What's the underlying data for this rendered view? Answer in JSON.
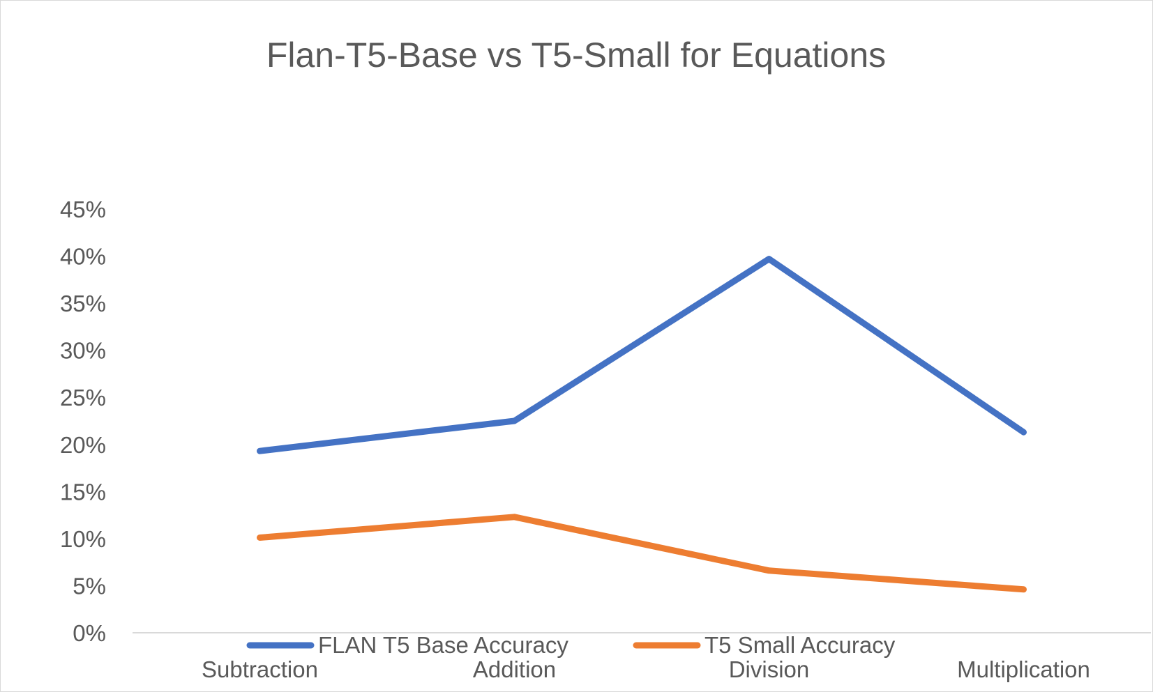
{
  "chart_data": {
    "type": "line",
    "title": "Flan-T5-Base vs T5-Small for Equations",
    "xlabel": "",
    "ylabel": "",
    "categories": [
      "Subtraction",
      "Addition",
      "Division",
      "Multiplication"
    ],
    "series": [
      {
        "name": "FLAN T5 Base Accuracy",
        "values": [
          19.3,
          22.5,
          39.7,
          21.3
        ],
        "color": "#4472C4"
      },
      {
        "name": "T5 Small Accuracy",
        "values": [
          10.1,
          12.3,
          6.6,
          4.6
        ],
        "color": "#ED7D31"
      }
    ],
    "yticks": [
      "0%",
      "5%",
      "10%",
      "15%",
      "20%",
      "25%",
      "30%",
      "35%",
      "40%",
      "45%"
    ],
    "ylim": [
      0,
      45
    ],
    "grid": false,
    "legend_position": "bottom",
    "axis_color": "#d9d9d9"
  }
}
